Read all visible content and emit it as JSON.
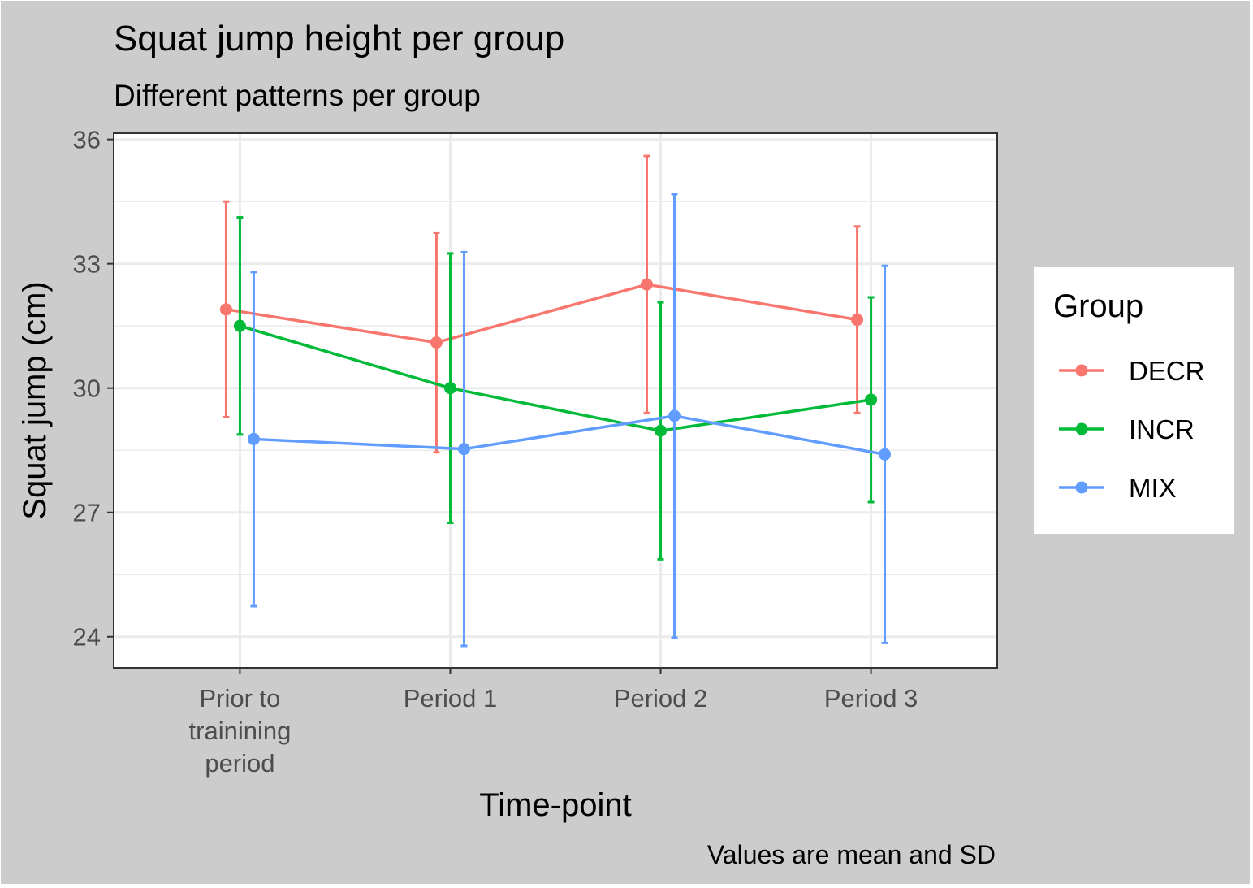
{
  "chart_data": {
    "type": "line",
    "title": "Squat jump height per group",
    "subtitle": "Different patterns per group",
    "xlabel": "Time-point",
    "ylabel": "Squat jump (cm)",
    "caption": "Values are mean and SD",
    "categories": [
      [
        "Prior to",
        "trainining",
        "period"
      ],
      [
        "Period 1"
      ],
      [
        "Period 2"
      ],
      [
        "Period 3"
      ]
    ],
    "ylim": [
      23.25,
      36.15
    ],
    "yticks": [
      24,
      27,
      30,
      33,
      36
    ],
    "ytick_labels": [
      "24",
      "27",
      "30",
      "33",
      "36"
    ],
    "grid": true,
    "legend": {
      "title": "Group",
      "placement": "right"
    },
    "series": [
      {
        "name": "DECR",
        "color": "#F8766D",
        "mean": [
          31.9,
          31.1,
          32.5,
          31.65
        ],
        "sd": [
          2.6,
          2.65,
          3.1,
          2.25
        ]
      },
      {
        "name": "INCR",
        "color": "#00BA38",
        "mean": [
          31.5,
          30.0,
          28.97,
          29.72
        ],
        "sd": [
          2.62,
          3.25,
          3.1,
          2.47
        ]
      },
      {
        "name": "MIX",
        "color": "#619CFF",
        "mean": [
          28.77,
          28.53,
          29.33,
          28.4
        ],
        "sd": [
          4.03,
          4.75,
          5.35,
          4.55
        ]
      }
    ]
  }
}
